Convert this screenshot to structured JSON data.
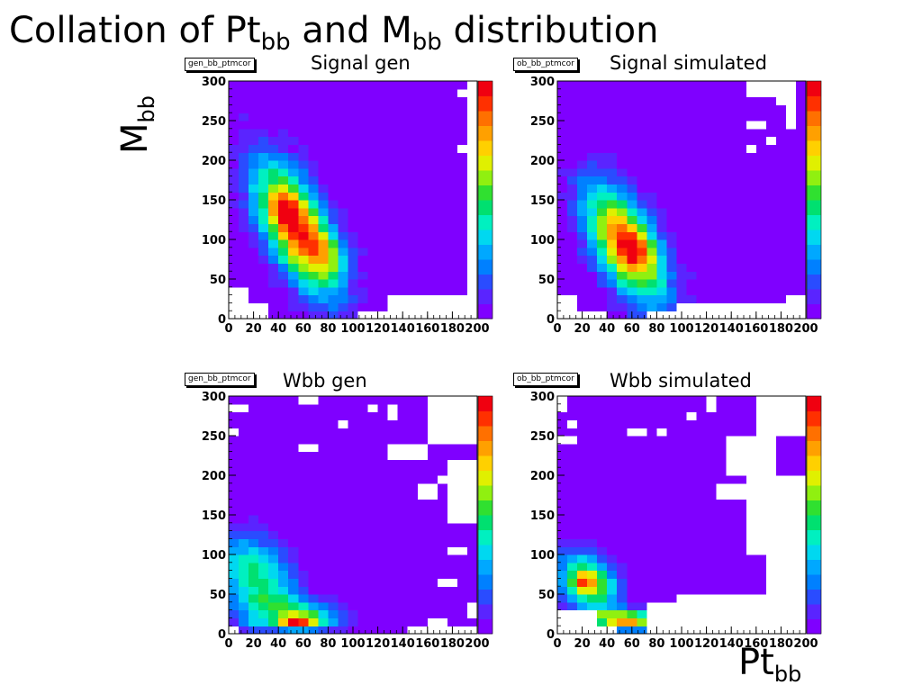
{
  "page": {
    "title_prefix": "Collation of Pt",
    "title_sub1": "bb",
    "title_middle": " and M",
    "title_sub2": "bb",
    "title_suffix": " distribution",
    "y_axis_main": "M",
    "y_axis_sub": "bb",
    "x_axis_main": "Pt",
    "x_axis_sub": "bb"
  },
  "colors": {
    "palette": [
      "#7f00ff",
      "#5a24ff",
      "#2a4cff",
      "#0080ff",
      "#00a8ff",
      "#00d8f0",
      "#00f0c0",
      "#00e070",
      "#30e030",
      "#90f010",
      "#e0f000",
      "#ffd000",
      "#ffa000",
      "#ff7000",
      "#ff3000",
      "#f00010"
    ],
    "empty_bin": "#ffffff",
    "frame": "#000000"
  },
  "chart_data": [
    {
      "type": "heatmap",
      "title": "Signal gen",
      "histogram_name": "gen_bb_ptmcor",
      "xlabel": "",
      "ylabel": "",
      "xlim": [
        0,
        200
      ],
      "ylim": [
        0,
        300
      ],
      "xticks": [
        "0",
        "20",
        "40",
        "60",
        "80",
        "100",
        "120",
        "140",
        "160",
        "180",
        "200"
      ],
      "yticks": [
        "0",
        "50",
        "100",
        "150",
        "200",
        "250",
        "300"
      ],
      "bins_x": 25,
      "bins_y": 30,
      "z_max": 15,
      "colorbar": true,
      "empty_bins": [
        [
          0,
          30,
          0,
          20
        ],
        [
          0,
          15,
          20,
          40
        ],
        [
          130,
          200,
          0,
          30
        ],
        [
          105,
          200,
          0,
          10
        ],
        [
          195,
          200,
          0,
          300
        ],
        [
          185,
          195,
          210,
          220
        ],
        [
          185,
          195,
          280,
          290
        ]
      ],
      "clusters": [
        {
          "x": 55,
          "y": 115,
          "sx": 23,
          "sy": 55,
          "rho": -0.62,
          "amp": 14
        },
        {
          "x": 45,
          "y": 135,
          "sx": 8,
          "sy": 15,
          "rho": 0,
          "amp": 3
        },
        {
          "x": 80,
          "y": 80,
          "sx": 10,
          "sy": 20,
          "rho": -0.2,
          "amp": 3
        }
      ],
      "noise": 0.5
    },
    {
      "type": "heatmap",
      "title": "Signal simulated",
      "histogram_name": "ob_bb_ptmcor",
      "xlabel": "",
      "ylabel": "",
      "xlim": [
        0,
        200
      ],
      "ylim": [
        0,
        300
      ],
      "xticks": [
        "0",
        "20",
        "40",
        "60",
        "80",
        "100",
        "120",
        "140",
        "160",
        "180",
        "200"
      ],
      "yticks": [
        "0",
        "50",
        "100",
        "150",
        "200",
        "250",
        "300"
      ],
      "bins_x": 25,
      "bins_y": 30,
      "z_max": 15,
      "colorbar": true,
      "empty_bins": [
        [
          0,
          20,
          0,
          30
        ],
        [
          20,
          40,
          0,
          15
        ],
        [
          70,
          200,
          0,
          10
        ],
        [
          100,
          200,
          0,
          20
        ],
        [
          155,
          195,
          280,
          300
        ],
        [
          175,
          185,
          270,
          280
        ],
        [
          185,
          195,
          240,
          280
        ],
        [
          155,
          165,
          240,
          250
        ],
        [
          165,
          175,
          220,
          230
        ],
        [
          150,
          160,
          210,
          220
        ],
        [
          185,
          200,
          0,
          30
        ]
      ],
      "clusters": [
        {
          "x": 55,
          "y": 95,
          "sx": 22,
          "sy": 50,
          "rho": -0.58,
          "amp": 13
        },
        {
          "x": 62,
          "y": 88,
          "sx": 9,
          "sy": 14,
          "rho": -0.3,
          "amp": 4
        }
      ],
      "noise": 0.5
    },
    {
      "type": "heatmap",
      "title": "Wbb gen",
      "histogram_name": "gen_bb_ptmcor",
      "xlabel": "",
      "ylabel": "",
      "xlim": [
        0,
        200
      ],
      "ylim": [
        0,
        300
      ],
      "xticks": [
        "0",
        "20",
        "40",
        "60",
        "80",
        "100",
        "120",
        "140",
        "160",
        "180",
        "200"
      ],
      "yticks": [
        "0",
        "50",
        "100",
        "150",
        "200",
        "250",
        "300"
      ],
      "bins_x": 25,
      "bins_y": 30,
      "z_max": 15,
      "colorbar": true,
      "empty_bins": [
        [
          0,
          10,
          0,
          10
        ],
        [
          145,
          200,
          0,
          10
        ],
        [
          160,
          175,
          10,
          20
        ],
        [
          0,
          20,
          280,
          290
        ],
        [
          0,
          10,
          250,
          260
        ],
        [
          160,
          200,
          240,
          300
        ],
        [
          130,
          160,
          220,
          240
        ],
        [
          150,
          170,
          170,
          190
        ],
        [
          180,
          200,
          140,
          220
        ],
        [
          180,
          195,
          100,
          110
        ],
        [
          170,
          200,
          190,
          200
        ],
        [
          60,
          70,
          290,
          300
        ],
        [
          110,
          120,
          280,
          290
        ],
        [
          85,
          100,
          260,
          270
        ],
        [
          130,
          140,
          270,
          290
        ],
        [
          60,
          70,
          230,
          240
        ],
        [
          170,
          185,
          60,
          70
        ],
        [
          190,
          200,
          20,
          40
        ]
      ],
      "clusters": [
        {
          "x": 22,
          "y": 75,
          "sx": 22,
          "sy": 35,
          "rho": -0.3,
          "amp": 7
        },
        {
          "x": 55,
          "y": 28,
          "sx": 28,
          "sy": 14,
          "rho": -0.4,
          "amp": 6
        },
        {
          "x": 55,
          "y": 15,
          "sx": 12,
          "sy": 6,
          "rho": 0,
          "amp": 10
        },
        {
          "x": 18,
          "y": 15,
          "sx": 8,
          "sy": 8,
          "rho": 0,
          "amp": 3
        }
      ],
      "noise": 0.3
    },
    {
      "type": "heatmap",
      "title": "Wbb simulated",
      "histogram_name": "ob_bb_ptmcor",
      "xlabel": "",
      "ylabel": "",
      "xlim": [
        0,
        200
      ],
      "ylim": [
        0,
        300
      ],
      "xticks": [
        "0",
        "20",
        "40",
        "60",
        "80",
        "100",
        "120",
        "140",
        "160",
        "180",
        "200"
      ],
      "yticks": [
        "0",
        "50",
        "100",
        "150",
        "200",
        "250",
        "300"
      ],
      "bins_x": 25,
      "bins_y": 30,
      "z_max": 15,
      "colorbar": true,
      "empty_bins": [
        [
          0,
          35,
          0,
          35
        ],
        [
          0,
          45,
          0,
          10
        ],
        [
          75,
          200,
          0,
          40
        ],
        [
          100,
          200,
          0,
          50
        ],
        [
          0,
          10,
          280,
          300
        ],
        [
          10,
          20,
          260,
          270
        ],
        [
          0,
          15,
          240,
          250
        ],
        [
          160,
          200,
          250,
          300
        ],
        [
          140,
          180,
          200,
          250
        ],
        [
          150,
          200,
          100,
          200
        ],
        [
          130,
          170,
          170,
          190
        ],
        [
          170,
          200,
          50,
          100
        ],
        [
          120,
          130,
          280,
          300
        ],
        [
          105,
          115,
          270,
          280
        ],
        [
          80,
          90,
          250,
          260
        ],
        [
          60,
          70,
          250,
          260
        ]
      ],
      "clusters": [
        {
          "x": 25,
          "y": 65,
          "sx": 16,
          "sy": 25,
          "rho": -0.3,
          "amp": 10
        },
        {
          "x": 22,
          "y": 65,
          "sx": 6,
          "sy": 8,
          "rho": 0,
          "amp": 4
        },
        {
          "x": 55,
          "y": 18,
          "sx": 18,
          "sy": 8,
          "rho": -0.2,
          "amp": 12
        }
      ],
      "noise": 0.3
    }
  ]
}
